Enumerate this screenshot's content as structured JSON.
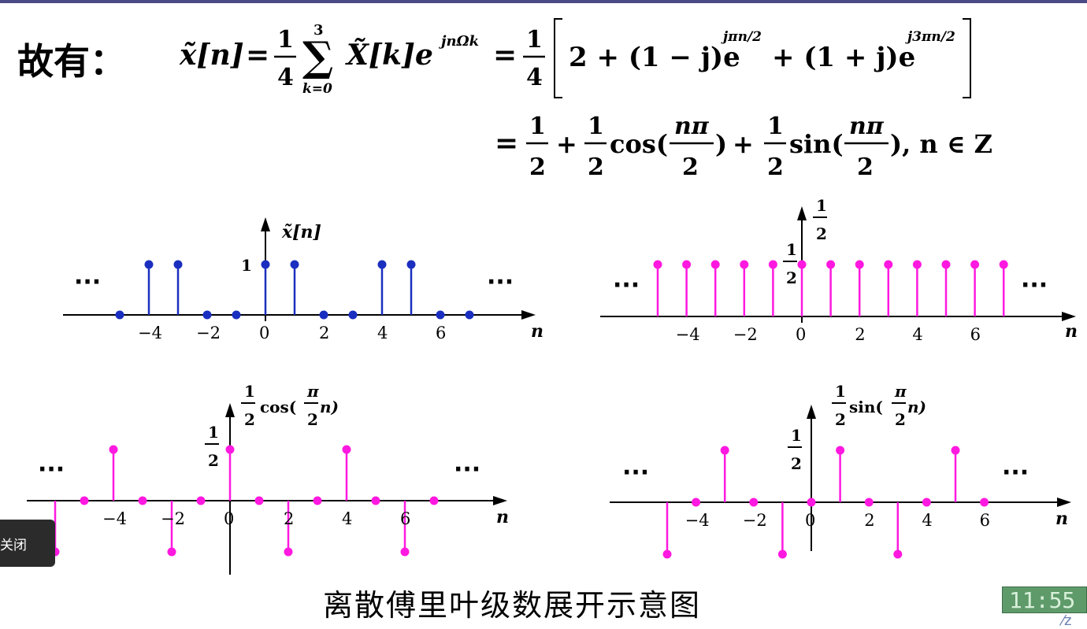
{
  "lead_text": "故有：",
  "equation_line1": {
    "lhs": "x̃[n]",
    "coef": {
      "num": "1",
      "den": "4"
    },
    "sum_upper": "3",
    "sum_lower": "k=0",
    "term": "X̃[k]e",
    "term_exp": "jnΩk",
    "coef2": {
      "num": "1",
      "den": "4"
    },
    "bracket_a": "2 + (1 − j)e",
    "bracket_a_exp": "jπn/2",
    "bracket_b": "+ (1 + j)e",
    "bracket_b_exp": "j3πn/2"
  },
  "equation_line2": {
    "eq": "=",
    "half": {
      "num": "1",
      "den": "2"
    },
    "cos_text": "cos(",
    "sin_text": "sin(",
    "frac_npi": {
      "num": "nπ",
      "den": "2"
    },
    "tail": "), n ∈ Z"
  },
  "plots": {
    "p1": {
      "ylabel": "x̃[n]",
      "xlabel": "n",
      "value_label": "1",
      "ellipsis": "···"
    },
    "p2": {
      "ylabel_num": "1",
      "ylabel_den": "2",
      "value_num": "1",
      "value_den": "2",
      "xlabel": "n",
      "ellipsis": "···"
    },
    "p3": {
      "ylabel_coef_num": "1",
      "ylabel_coef_den": "2",
      "ylabel_fn": "cos(",
      "ylabel_frac_num": "π",
      "ylabel_frac_den": "2",
      "ylabel_tail": "n)",
      "value_num": "1",
      "value_den": "2",
      "xlabel": "n",
      "ellipsis": "···"
    },
    "p4": {
      "ylabel_coef_num": "1",
      "ylabel_coef_den": "2",
      "ylabel_fn": "sin(",
      "ylabel_frac_num": "π",
      "ylabel_frac_den": "2",
      "ylabel_tail": "n)",
      "value_num": "1",
      "value_den": "2",
      "xlabel": "n",
      "ellipsis": "···"
    }
  },
  "chart_data": [
    {
      "type": "stem",
      "ylabel": "x̃[n]",
      "xlabel": "n",
      "x": [
        -5,
        -4,
        -3,
        -2,
        -1,
        0,
        1,
        2,
        3,
        4,
        5,
        6,
        7
      ],
      "values": [
        0,
        1,
        1,
        0,
        0,
        1,
        1,
        0,
        0,
        1,
        1,
        0,
        0
      ],
      "tick_labels": [
        "−4",
        "−2",
        "0",
        "2",
        "4",
        "6"
      ],
      "color": "#1a2fbf"
    },
    {
      "type": "stem",
      "ylabel": "1/2",
      "xlabel": "n",
      "x": [
        -5,
        -4,
        -3,
        -2,
        -1,
        0,
        1,
        2,
        3,
        4,
        5,
        6,
        7
      ],
      "values": [
        0.5,
        0.5,
        0.5,
        0.5,
        0.5,
        0.5,
        0.5,
        0.5,
        0.5,
        0.5,
        0.5,
        0.5,
        0.5
      ],
      "tick_labels": [
        "−4",
        "−2",
        "0",
        "2",
        "4",
        "6"
      ],
      "color": "#ff19e0"
    },
    {
      "type": "stem",
      "ylabel": "1/2 cos(π/2 n)",
      "xlabel": "n",
      "x": [
        -6,
        -5,
        -4,
        -3,
        -2,
        -1,
        0,
        1,
        2,
        3,
        4,
        5,
        6,
        7
      ],
      "values": [
        -0.5,
        0,
        0.5,
        0,
        -0.5,
        0,
        0.5,
        0,
        -0.5,
        0,
        0.5,
        0,
        -0.5,
        0
      ],
      "tick_labels": [
        "−4",
        "−2",
        "0",
        "2",
        "4",
        "6"
      ],
      "color": "#ff19e0"
    },
    {
      "type": "stem",
      "ylabel": "1/2 sin(π/2 n)",
      "xlabel": "n",
      "x": [
        -5,
        -4,
        -3,
        -2,
        -1,
        0,
        1,
        2,
        3,
        4,
        5,
        6
      ],
      "values": [
        -0.5,
        0,
        0.5,
        0,
        -0.5,
        0,
        0.5,
        0,
        -0.5,
        0,
        0.5,
        0
      ],
      "tick_labels": [
        "−4",
        "−2",
        "0",
        "2",
        "4",
        "6"
      ],
      "color": "#ff19e0"
    }
  ],
  "caption": "离散傅里叶级数展开示意图",
  "popup_label": "关闭",
  "clock_text": "11:55",
  "colors": {
    "blue": "#1a2fbf",
    "magenta": "#ff19e0",
    "topbar": "#4a4a86"
  }
}
